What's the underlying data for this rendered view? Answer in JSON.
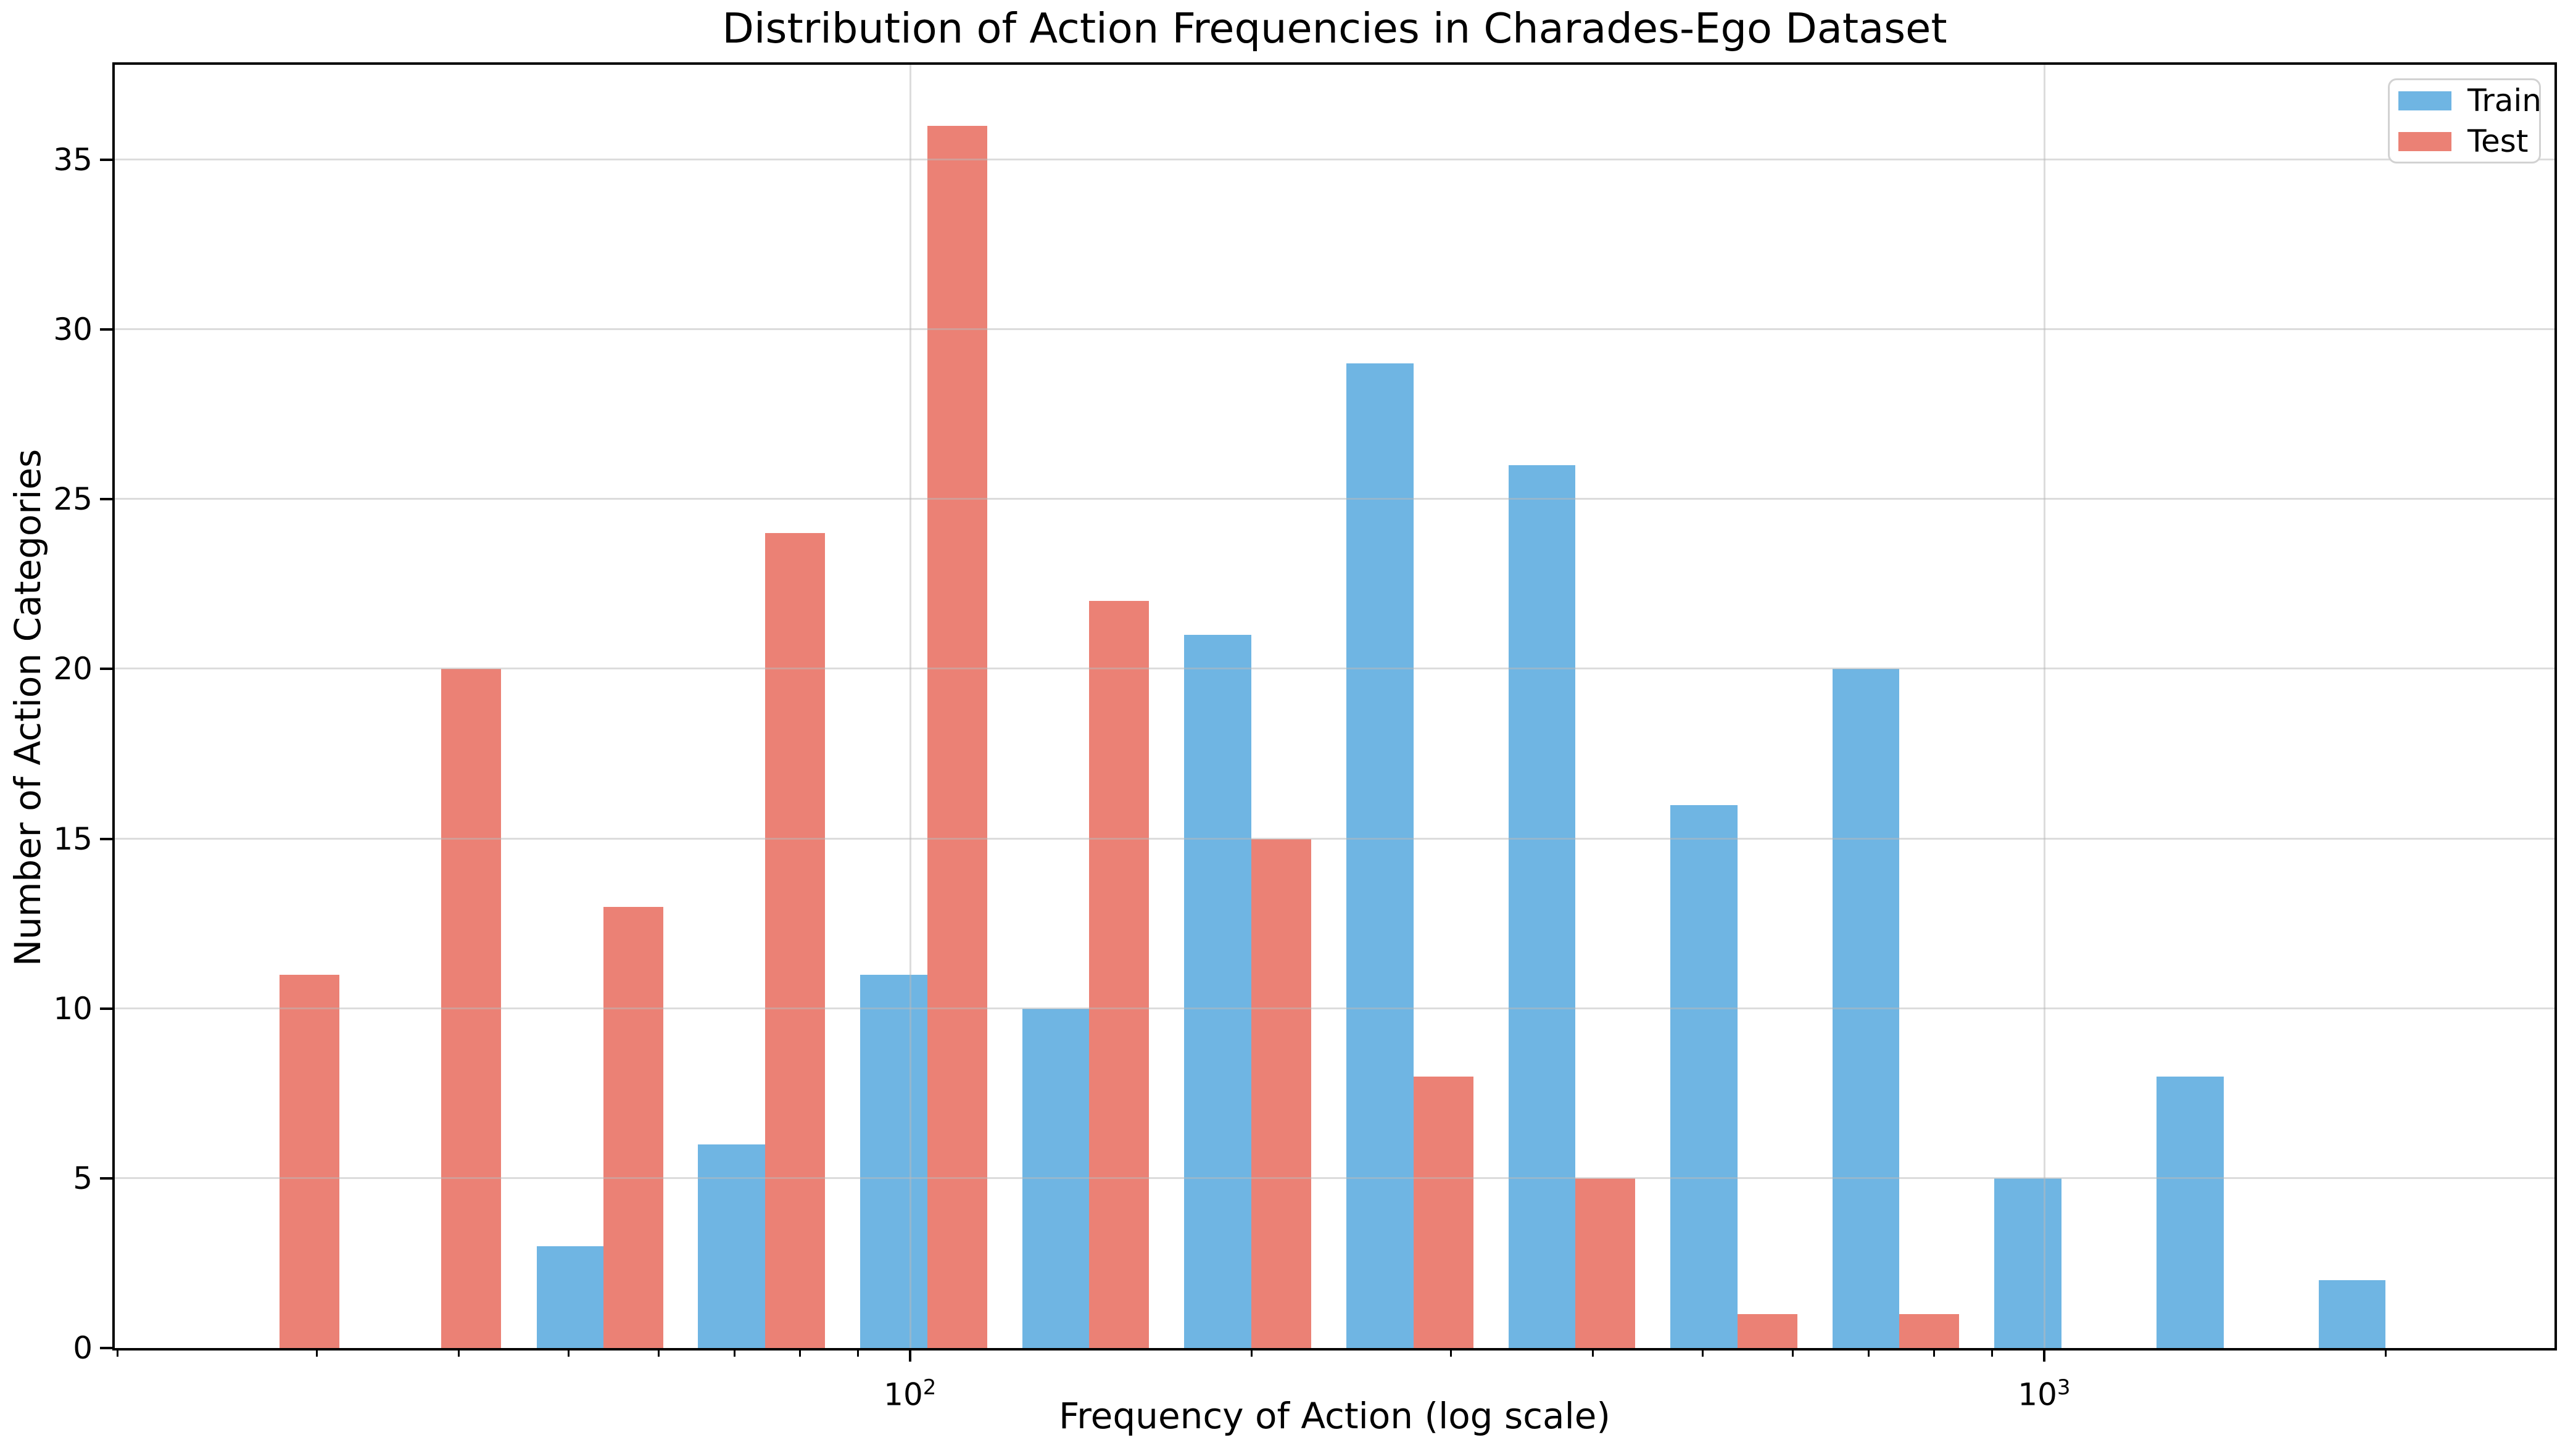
{
  "title": "Distribution of Action Frequencies in Charades-Ego Dataset",
  "chart_data": {
    "type": "bar",
    "x": [
      27.8,
      38.6,
      53.7,
      74.5,
      103.6,
      143.9,
      200,
      277.9,
      386.1,
      536.5,
      745.4,
      1035.8,
      1439.3,
      2000
    ],
    "series": [
      {
        "name": "Train",
        "color": "#6FB5E3",
        "values": [
          0,
          0,
          3,
          6,
          11,
          10,
          21,
          29,
          26,
          16,
          20,
          5,
          8,
          2
        ]
      },
      {
        "name": "Test",
        "color": "#EB8175",
        "values": [
          11,
          20,
          13,
          24,
          36,
          22,
          15,
          8,
          5,
          1,
          1,
          0,
          0,
          0
        ]
      }
    ],
    "title": "Distribution of Action Frequencies in Charades-Ego Dataset",
    "xlabel": "Frequency of Action (log scale)",
    "ylabel": "Number of Action Categories",
    "x_scale": "log",
    "xlim": [
      19.9,
      2818
    ],
    "ylim": [
      0,
      37.8
    ],
    "y_ticks": [
      0,
      5,
      10,
      15,
      20,
      25,
      30,
      35
    ],
    "x_major_ticks": [
      {
        "value": 100,
        "base": "10",
        "exp": "2"
      },
      {
        "value": 1000,
        "base": "10",
        "exp": "3"
      }
    ],
    "x_minor_ticks": [
      20,
      30,
      40,
      50,
      60,
      70,
      80,
      90,
      200,
      300,
      400,
      500,
      600,
      700,
      800,
      900,
      2000
    ],
    "grid": {
      "y_values": [
        5,
        10,
        15,
        20,
        25,
        30,
        35
      ],
      "x_values": [
        100,
        1000
      ]
    },
    "legend": {
      "position": "upper right"
    }
  }
}
